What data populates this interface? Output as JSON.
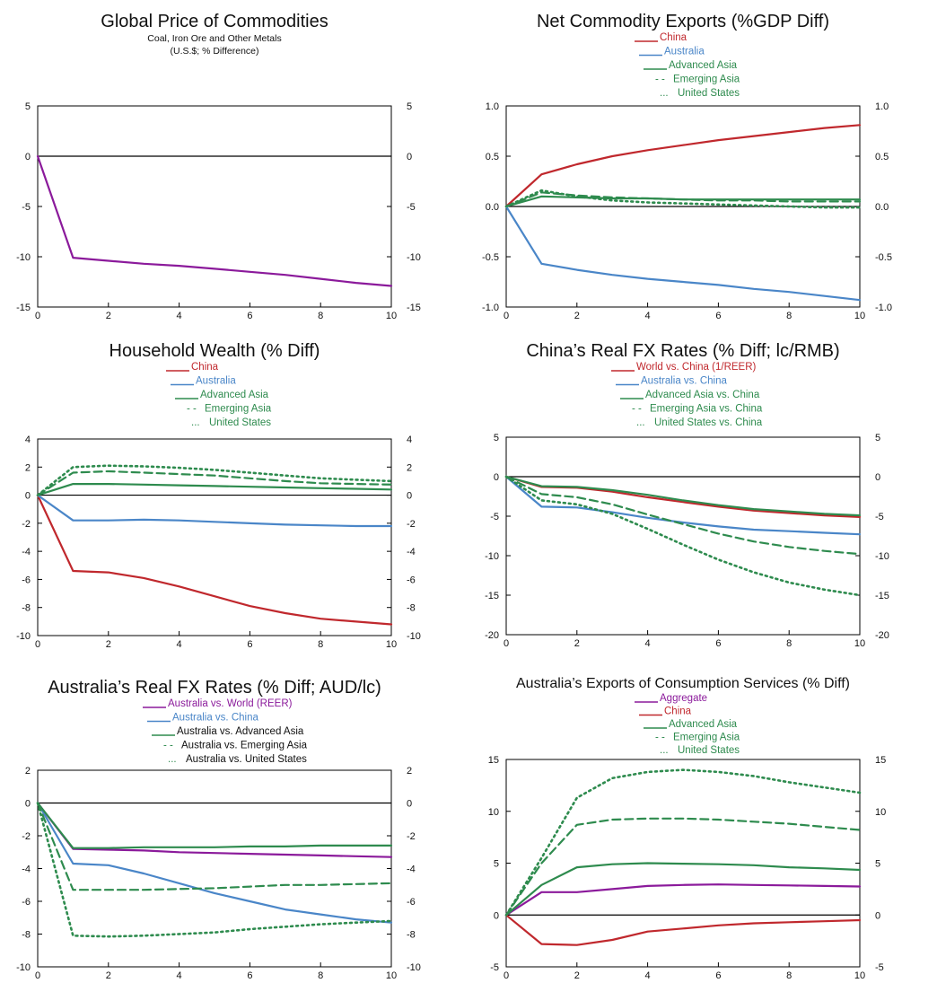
{
  "colors": {
    "china": "#c0282d",
    "australia": "#4a86c8",
    "advanced_asia": "#2e8b4e",
    "emerging_asia": "#2e8b4e",
    "united_states": "#2e8b4e",
    "aggregate": "#8b1a9b",
    "axis": "#000000"
  },
  "chart_data": [
    {
      "type": "line",
      "title": "Global Price of Commodities",
      "subtitle": [
        "Coal, Iron Ore and Other Metals",
        "(U.S.$; % Difference)"
      ],
      "xlim": [
        0,
        10
      ],
      "ylim": [
        -15,
        5
      ],
      "xticks": [
        0,
        2,
        4,
        6,
        8,
        10
      ],
      "yticks": [
        5,
        0,
        -5,
        -10,
        -15
      ],
      "ytick_labels": [
        "5",
        "0",
        "-5",
        "-10",
        "-15"
      ],
      "x": [
        0,
        1,
        2,
        3,
        4,
        5,
        6,
        7,
        8,
        9,
        10
      ],
      "series": [
        {
          "color": "#8b1a9b",
          "dash": "solid",
          "values": [
            0,
            -10.1,
            -10.4,
            -10.7,
            -10.9,
            -11.2,
            -11.5,
            -11.8,
            -12.2,
            -12.6,
            -12.9
          ]
        }
      ],
      "legend": []
    },
    {
      "type": "line",
      "title": "Net Commodity Exports (%GDP Diff)",
      "subtitle": [],
      "xlim": [
        0,
        10
      ],
      "ylim": [
        -1.0,
        1.0
      ],
      "xticks": [
        0,
        2,
        4,
        6,
        8,
        10
      ],
      "yticks": [
        1.0,
        0.5,
        0.0,
        -0.5,
        -1.0
      ],
      "ytick_labels": [
        "1.0",
        "0.5",
        "0.0",
        "-0.5",
        "-1.0"
      ],
      "x": [
        0,
        1,
        2,
        3,
        4,
        5,
        6,
        7,
        8,
        9,
        10
      ],
      "series": [
        {
          "name": "China",
          "color": "#c0282d",
          "dash": "solid",
          "values": [
            0,
            0.32,
            0.42,
            0.5,
            0.56,
            0.61,
            0.66,
            0.7,
            0.74,
            0.78,
            0.81
          ]
        },
        {
          "name": "Australia",
          "color": "#4a86c8",
          "dash": "solid",
          "values": [
            0,
            -0.57,
            -0.63,
            -0.68,
            -0.72,
            -0.75,
            -0.78,
            -0.82,
            -0.85,
            -0.89,
            -0.93
          ]
        },
        {
          "name": "Advanced Asia",
          "color": "#2e8b4e",
          "dash": "solid",
          "values": [
            0,
            0.1,
            0.09,
            0.08,
            0.08,
            0.07,
            0.07,
            0.07,
            0.07,
            0.07,
            0.07
          ]
        },
        {
          "name": "Emerging Asia",
          "color": "#2e8b4e",
          "dash": "dashed",
          "values": [
            0,
            0.14,
            0.11,
            0.09,
            0.08,
            0.07,
            0.06,
            0.06,
            0.05,
            0.05,
            0.05
          ]
        },
        {
          "name": "United States",
          "color": "#2e8b4e",
          "dash": "dotted",
          "values": [
            0,
            0.16,
            0.1,
            0.06,
            0.04,
            0.03,
            0.02,
            0.01,
            0.0,
            -0.01,
            -0.01
          ]
        }
      ],
      "legend": [
        {
          "label": "China",
          "color": "#c0282d",
          "marker": "line",
          "text_color": "#c0282d"
        },
        {
          "label": "Australia",
          "color": "#4a86c8",
          "marker": "line",
          "text_color": "#4a86c8"
        },
        {
          "label": "Advanced Asia",
          "color": "#2e8b4e",
          "marker": "line",
          "text_color": "#2e8b4e"
        },
        {
          "label": "Emerging Asia",
          "color": "#2e8b4e",
          "marker": "- -",
          "text_color": "#2e8b4e"
        },
        {
          "label": "United States",
          "color": "#2e8b4e",
          "marker": "...",
          "text_color": "#2e8b4e"
        }
      ]
    },
    {
      "type": "line",
      "title": "Household Wealth (% Diff)",
      "subtitle": [],
      "xlim": [
        0,
        10
      ],
      "ylim": [
        -10,
        4
      ],
      "xticks": [
        0,
        2,
        4,
        6,
        8,
        10
      ],
      "yticks": [
        4,
        2,
        0,
        -2,
        -4,
        -6,
        -8,
        -10
      ],
      "ytick_labels": [
        "4",
        "2",
        "0",
        "-2",
        "-4",
        "-6",
        "-8",
        "-10"
      ],
      "x": [
        0,
        1,
        2,
        3,
        4,
        5,
        6,
        7,
        8,
        9,
        10
      ],
      "series": [
        {
          "name": "China",
          "color": "#c0282d",
          "dash": "solid",
          "values": [
            0,
            -5.4,
            -5.5,
            -5.9,
            -6.5,
            -7.2,
            -7.9,
            -8.4,
            -8.8,
            -9.0,
            -9.2
          ]
        },
        {
          "name": "Australia",
          "color": "#4a86c8",
          "dash": "solid",
          "values": [
            0,
            -1.8,
            -1.8,
            -1.75,
            -1.8,
            -1.9,
            -2.0,
            -2.1,
            -2.15,
            -2.2,
            -2.2
          ]
        },
        {
          "name": "Advanced Asia",
          "color": "#2e8b4e",
          "dash": "solid",
          "values": [
            0,
            0.8,
            0.8,
            0.75,
            0.7,
            0.65,
            0.6,
            0.55,
            0.5,
            0.45,
            0.4
          ]
        },
        {
          "name": "Emerging Asia",
          "color": "#2e8b4e",
          "dash": "dashed",
          "values": [
            0,
            1.6,
            1.7,
            1.6,
            1.5,
            1.4,
            1.2,
            1.0,
            0.85,
            0.8,
            0.75
          ]
        },
        {
          "name": "United States",
          "color": "#2e8b4e",
          "dash": "dotted",
          "values": [
            0,
            2.0,
            2.1,
            2.05,
            1.95,
            1.8,
            1.6,
            1.4,
            1.2,
            1.1,
            1.0
          ]
        }
      ],
      "legend": [
        {
          "label": "China",
          "color": "#c0282d",
          "marker": "line",
          "text_color": "#c0282d"
        },
        {
          "label": "Australia",
          "color": "#4a86c8",
          "marker": "line",
          "text_color": "#4a86c8"
        },
        {
          "label": "Advanced Asia",
          "color": "#2e8b4e",
          "marker": "line",
          "text_color": "#2e8b4e"
        },
        {
          "label": "Emerging Asia",
          "color": "#2e8b4e",
          "marker": "- -",
          "text_color": "#2e8b4e"
        },
        {
          "label": "United States",
          "color": "#2e8b4e",
          "marker": "...",
          "text_color": "#2e8b4e"
        }
      ]
    },
    {
      "type": "line",
      "title": "China’s Real FX Rates (% Diff; lc/RMB)",
      "subtitle": [],
      "xlim": [
        0,
        10
      ],
      "ylim": [
        -20,
        5
      ],
      "xticks": [
        0,
        2,
        4,
        6,
        8,
        10
      ],
      "yticks": [
        5,
        0,
        -5,
        -10,
        -15,
        -20
      ],
      "ytick_labels": [
        "5",
        "0",
        "-5",
        "-10",
        "-15",
        "-20"
      ],
      "x": [
        0,
        1,
        2,
        3,
        4,
        5,
        6,
        7,
        8,
        9,
        10
      ],
      "series": [
        {
          "name": "World vs. China (1/REER)",
          "color": "#c0282d",
          "dash": "solid",
          "values": [
            0,
            -1.3,
            -1.4,
            -1.9,
            -2.6,
            -3.2,
            -3.8,
            -4.3,
            -4.6,
            -4.9,
            -5.1
          ]
        },
        {
          "name": "Australia vs. China",
          "color": "#4a86c8",
          "dash": "solid",
          "values": [
            0,
            -3.8,
            -3.9,
            -4.5,
            -5.2,
            -5.8,
            -6.3,
            -6.7,
            -6.9,
            -7.1,
            -7.3
          ]
        },
        {
          "name": "Advanced Asia vs. China",
          "color": "#2e8b4e",
          "dash": "solid",
          "values": [
            0,
            -1.2,
            -1.3,
            -1.7,
            -2.3,
            -3.0,
            -3.6,
            -4.1,
            -4.4,
            -4.7,
            -4.9
          ]
        },
        {
          "name": "Emerging Asia vs. China",
          "color": "#2e8b4e",
          "dash": "dashed",
          "values": [
            0,
            -2.2,
            -2.6,
            -3.5,
            -4.8,
            -6.0,
            -7.2,
            -8.2,
            -8.9,
            -9.4,
            -9.8
          ]
        },
        {
          "name": "United States vs. China",
          "color": "#2e8b4e",
          "dash": "dotted",
          "values": [
            0,
            -3.0,
            -3.5,
            -4.7,
            -6.6,
            -8.6,
            -10.5,
            -12.1,
            -13.4,
            -14.3,
            -15.0
          ]
        }
      ],
      "legend": [
        {
          "label": "World vs. China (1/REER)",
          "color": "#c0282d",
          "marker": "line",
          "text_color": "#c0282d"
        },
        {
          "label": "Australia vs. China",
          "color": "#4a86c8",
          "marker": "line",
          "text_color": "#4a86c8"
        },
        {
          "label": "Advanced Asia vs. China",
          "color": "#2e8b4e",
          "marker": "line",
          "text_color": "#2e8b4e"
        },
        {
          "label": "Emerging Asia vs. China",
          "color": "#2e8b4e",
          "marker": "- -",
          "text_color": "#2e8b4e"
        },
        {
          "label": "United States vs. China",
          "color": "#2e8b4e",
          "marker": "...",
          "text_color": "#2e8b4e"
        }
      ]
    },
    {
      "type": "line",
      "title": "Australia’s Real FX Rates (% Diff; AUD/lc)",
      "subtitle": [],
      "xlim": [
        0,
        10
      ],
      "ylim": [
        -10,
        2
      ],
      "xticks": [
        0,
        2,
        4,
        6,
        8,
        10
      ],
      "yticks": [
        2,
        0,
        -2,
        -4,
        -6,
        -8,
        -10
      ],
      "ytick_labels": [
        "2",
        "0",
        "-2",
        "-4",
        "-6",
        "-8",
        "-10"
      ],
      "x": [
        0,
        1,
        2,
        3,
        4,
        5,
        6,
        7,
        8,
        9,
        10
      ],
      "series": [
        {
          "name": "Australia vs. World (REER)",
          "color": "#8b1a9b",
          "dash": "solid",
          "values": [
            0,
            -2.8,
            -2.85,
            -2.9,
            -3.0,
            -3.05,
            -3.1,
            -3.15,
            -3.2,
            -3.25,
            -3.3
          ]
        },
        {
          "name": "Australia vs. China",
          "color": "#4a86c8",
          "dash": "solid",
          "values": [
            0,
            -3.7,
            -3.8,
            -4.3,
            -4.9,
            -5.5,
            -6.0,
            -6.5,
            -6.8,
            -7.1,
            -7.3
          ]
        },
        {
          "name": "Australia vs. Advanced Asia",
          "color": "#2e8b4e",
          "dash": "solid",
          "values": [
            0,
            -2.75,
            -2.75,
            -2.7,
            -2.7,
            -2.7,
            -2.65,
            -2.65,
            -2.6,
            -2.6,
            -2.6
          ]
        },
        {
          "name": "Australia vs. Emerging Asia",
          "color": "#2e8b4e",
          "dash": "dashed",
          "values": [
            0,
            -5.3,
            -5.3,
            -5.3,
            -5.25,
            -5.2,
            -5.1,
            -5.0,
            -5.0,
            -4.95,
            -4.9
          ]
        },
        {
          "name": "Australia vs. United States",
          "color": "#2e8b4e",
          "dash": "dotted",
          "values": [
            0,
            -8.1,
            -8.15,
            -8.1,
            -8.0,
            -7.9,
            -7.7,
            -7.55,
            -7.4,
            -7.3,
            -7.2
          ]
        }
      ],
      "legend": [
        {
          "label": "Australia vs. World (REER)",
          "color": "#8b1a9b",
          "marker": "line",
          "text_color": "#8b1a9b"
        },
        {
          "label": "Australia vs. China",
          "color": "#4a86c8",
          "marker": "line",
          "text_color": "#4a86c8"
        },
        {
          "label": "Australia vs. Advanced Asia",
          "color": "#2e8b4e",
          "marker": "line",
          "text_color": "#111111"
        },
        {
          "label": "Australia vs. Emerging Asia",
          "color": "#2e8b4e",
          "marker": "- -",
          "text_color": "#111111"
        },
        {
          "label": "Australia vs. United States",
          "color": "#2e8b4e",
          "marker": "...",
          "text_color": "#111111"
        }
      ]
    },
    {
      "type": "line",
      "title": "Australia’s Exports of Consumption Services (% Diff)",
      "subtitle": [],
      "xlim": [
        0,
        10
      ],
      "ylim": [
        -5,
        15
      ],
      "xticks": [
        0,
        2,
        4,
        6,
        8,
        10
      ],
      "yticks": [
        15,
        10,
        5,
        0,
        -5
      ],
      "ytick_labels": [
        "15",
        "10",
        "5",
        "0",
        "-5"
      ],
      "x": [
        0,
        1,
        2,
        3,
        4,
        5,
        6,
        7,
        8,
        9,
        10
      ],
      "series": [
        {
          "name": "Aggregate",
          "color": "#8b1a9b",
          "dash": "solid",
          "values": [
            0,
            2.2,
            2.2,
            2.5,
            2.8,
            2.9,
            2.95,
            2.9,
            2.85,
            2.8,
            2.75
          ]
        },
        {
          "name": "China",
          "color": "#c0282d",
          "dash": "solid",
          "values": [
            0,
            -2.8,
            -2.9,
            -2.4,
            -1.6,
            -1.3,
            -1.0,
            -0.8,
            -0.7,
            -0.6,
            -0.5
          ]
        },
        {
          "name": "Advanced Asia",
          "color": "#2e8b4e",
          "dash": "solid",
          "values": [
            0,
            2.9,
            4.6,
            4.9,
            5.0,
            4.95,
            4.9,
            4.8,
            4.6,
            4.5,
            4.35
          ]
        },
        {
          "name": "Emerging Asia",
          "color": "#2e8b4e",
          "dash": "dashed",
          "values": [
            0,
            5.0,
            8.7,
            9.2,
            9.3,
            9.3,
            9.2,
            9.0,
            8.8,
            8.5,
            8.2
          ]
        },
        {
          "name": "United States",
          "color": "#2e8b4e",
          "dash": "dotted",
          "values": [
            0,
            5.5,
            11.3,
            13.2,
            13.8,
            14.0,
            13.8,
            13.4,
            12.8,
            12.3,
            11.8
          ]
        }
      ],
      "legend": [
        {
          "label": "Aggregate",
          "color": "#8b1a9b",
          "marker": "line",
          "text_color": "#8b1a9b"
        },
        {
          "label": "China",
          "color": "#c0282d",
          "marker": "line",
          "text_color": "#c0282d"
        },
        {
          "label": "Advanced Asia",
          "color": "#2e8b4e",
          "marker": "line",
          "text_color": "#2e8b4e"
        },
        {
          "label": "Emerging Asia",
          "color": "#2e8b4e",
          "marker": "- -",
          "text_color": "#2e8b4e"
        },
        {
          "label": "United States",
          "color": "#2e8b4e",
          "marker": "...",
          "text_color": "#2e8b4e"
        }
      ]
    }
  ]
}
